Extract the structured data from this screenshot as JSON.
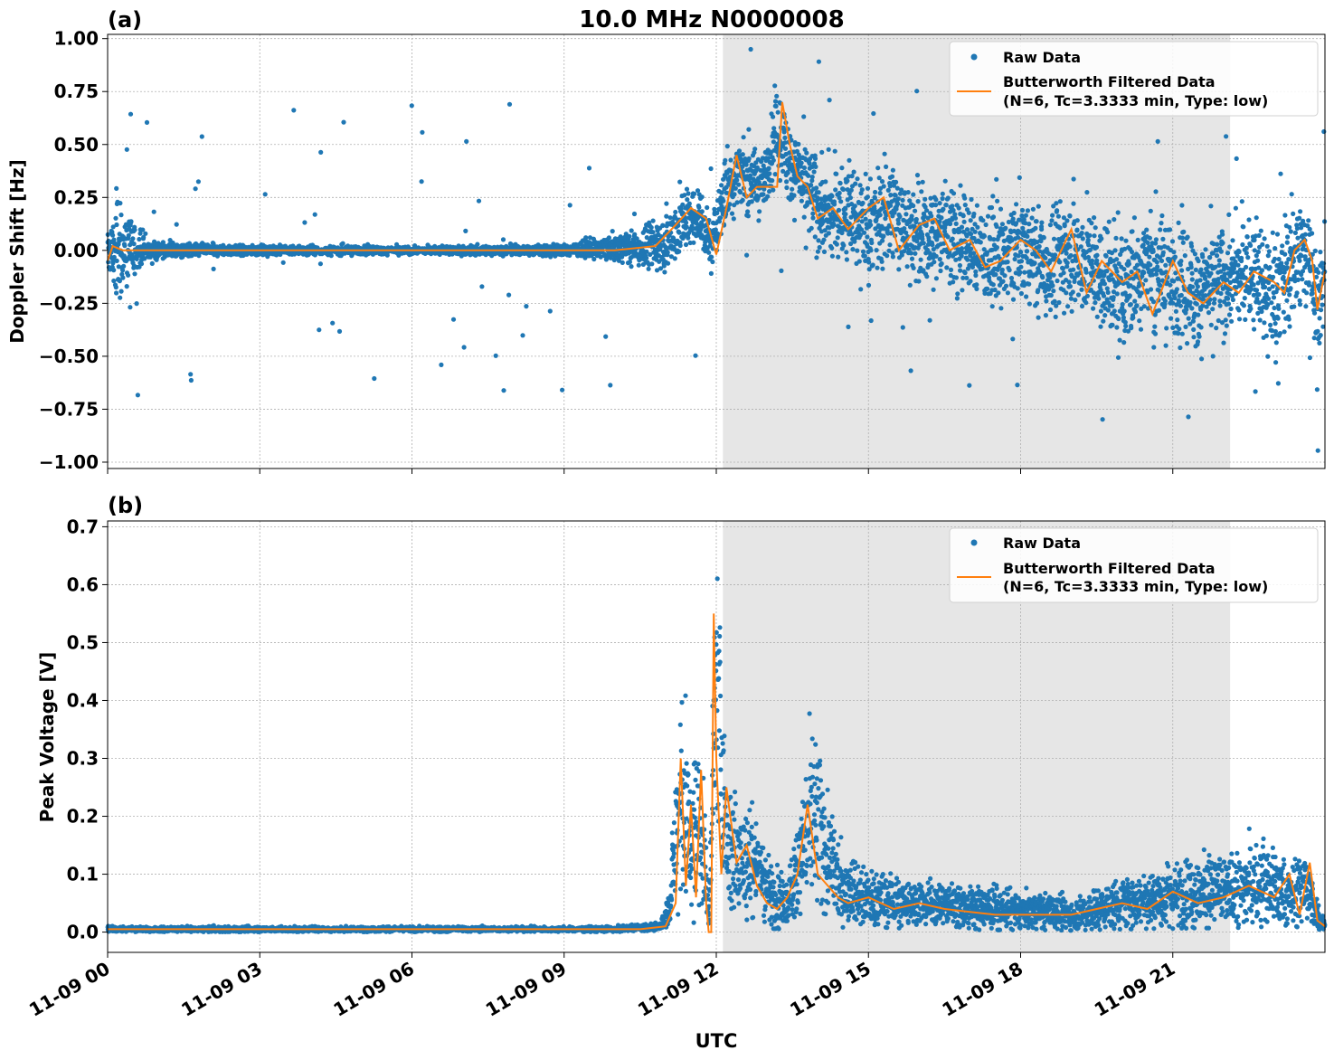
{
  "figure": {
    "title": "10.0 MHz N0000008",
    "xlabel": "UTC",
    "x_tick_labels": [
      "11-09 00",
      "11-09 03",
      "11-09 06",
      "11-09 09",
      "11-09 12",
      "11-09 15",
      "11-09 18",
      "11-09 21"
    ],
    "colors": {
      "raw": "#1f77b4",
      "filtered": "#ff7f0e",
      "shade": "#e6e6e6",
      "grid": "#b0b0b0"
    }
  },
  "chart_data": [
    {
      "type": "scatter",
      "panel_label": "(a)",
      "ylabel": "Doppler Shift [Hz]",
      "xlim_hours": [
        0,
        24
      ],
      "ylim": [
        -1.03,
        1.02
      ],
      "yticks": [
        -1.0,
        -0.75,
        -0.5,
        -0.25,
        0.0,
        0.25,
        0.5,
        0.75,
        1.0
      ],
      "ytick_labels": [
        "−1.00",
        "−0.75",
        "−0.50",
        "−0.25",
        "0.00",
        "0.25",
        "0.50",
        "0.75",
        "1.00"
      ],
      "shaded_span_hours": [
        12.13,
        22.13
      ],
      "grid": true,
      "legend": {
        "placement": "top-right",
        "raw": "Raw Data",
        "filtered_line1": "Butterworth Filtered Data",
        "filtered_line2": "(N=6, Tc=3.3333 min, Type: low)"
      },
      "series": [
        {
          "name": "Raw Data",
          "kind": "points",
          "x_hours_y_center_spread": [
            [
              0,
              0,
              0.08
            ],
            [
              0.2,
              0,
              0.3
            ],
            [
              0.4,
              0,
              0.2
            ],
            [
              0.8,
              0,
              0.05
            ],
            [
              2,
              0,
              0.03
            ],
            [
              6,
              0,
              0.02
            ],
            [
              9,
              0,
              0.03
            ],
            [
              9.8,
              0.01,
              0.06
            ],
            [
              10.5,
              0.01,
              0.1
            ],
            [
              11,
              0.04,
              0.15
            ],
            [
              11.3,
              0.12,
              0.18
            ],
            [
              11.6,
              0.18,
              0.15
            ],
            [
              11.9,
              0.02,
              0.12
            ],
            [
              12.2,
              0.3,
              0.2
            ],
            [
              12.5,
              0.38,
              0.2
            ],
            [
              12.9,
              0.3,
              0.15
            ],
            [
              13.2,
              0.55,
              0.22
            ],
            [
              13.5,
              0.4,
              0.22
            ],
            [
              13.8,
              0.28,
              0.25
            ],
            [
              14.2,
              0.15,
              0.25
            ],
            [
              14.6,
              0.18,
              0.25
            ],
            [
              15,
              0.12,
              0.25
            ],
            [
              15.5,
              0.18,
              0.25
            ],
            [
              16,
              0.05,
              0.25
            ],
            [
              16.5,
              0.1,
              0.25
            ],
            [
              17,
              0.02,
              0.25
            ],
            [
              17.5,
              -0.05,
              0.25
            ],
            [
              18,
              0.02,
              0.28
            ],
            [
              18.5,
              -0.08,
              0.28
            ],
            [
              19,
              0,
              0.3
            ],
            [
              19.5,
              -0.1,
              0.28
            ],
            [
              20,
              -0.2,
              0.3
            ],
            [
              20.5,
              -0.05,
              0.3
            ],
            [
              21,
              -0.15,
              0.3
            ],
            [
              21.5,
              -0.2,
              0.3
            ],
            [
              22,
              -0.15,
              0.28
            ],
            [
              22.5,
              -0.1,
              0.28
            ],
            [
              23,
              -0.2,
              0.3
            ],
            [
              23.4,
              -0.05,
              0.28
            ],
            [
              23.7,
              0,
              0.25
            ],
            [
              23.85,
              -0.3,
              0.35
            ],
            [
              24,
              -0.1,
              0.2
            ]
          ]
        },
        {
          "name": "Butterworth Filtered Data",
          "kind": "line",
          "x_hours": [
            0,
            0.1,
            0.3,
            1,
            3,
            6,
            9,
            10,
            10.8,
            11.2,
            11.5,
            11.8,
            12.0,
            12.2,
            12.4,
            12.6,
            12.8,
            13.0,
            13.2,
            13.3,
            13.45,
            13.6,
            13.8,
            14.0,
            14.3,
            14.6,
            15.0,
            15.3,
            15.6,
            16.0,
            16.3,
            16.6,
            17.0,
            17.3,
            17.6,
            18.0,
            18.3,
            18.6,
            19.0,
            19.3,
            19.6,
            20.0,
            20.3,
            20.6,
            21.0,
            21.3,
            21.6,
            22.0,
            22.3,
            22.6,
            23.0,
            23.2,
            23.4,
            23.6,
            23.75,
            23.85,
            24.0
          ],
          "y": [
            -0.05,
            0.02,
            0.0,
            0.0,
            0.0,
            0.0,
            0.0,
            0.0,
            0.02,
            0.12,
            0.2,
            0.15,
            -0.02,
            0.2,
            0.45,
            0.25,
            0.3,
            0.3,
            0.3,
            0.7,
            0.5,
            0.35,
            0.3,
            0.15,
            0.2,
            0.1,
            0.2,
            0.25,
            0.0,
            0.12,
            0.15,
            0.0,
            0.05,
            -0.08,
            -0.05,
            0.05,
            0.0,
            -0.1,
            0.1,
            -0.2,
            -0.05,
            -0.15,
            -0.1,
            -0.3,
            -0.05,
            -0.2,
            -0.25,
            -0.15,
            -0.2,
            -0.1,
            -0.15,
            -0.2,
            0.0,
            0.05,
            -0.05,
            -0.28,
            -0.1
          ]
        }
      ]
    },
    {
      "type": "scatter",
      "panel_label": "(b)",
      "ylabel": "Peak Voltage [V]",
      "xlim_hours": [
        0,
        24
      ],
      "ylim": [
        -0.035,
        0.71
      ],
      "yticks": [
        0.0,
        0.1,
        0.2,
        0.3,
        0.4,
        0.5,
        0.6,
        0.7
      ],
      "ytick_labels": [
        "0.0",
        "0.1",
        "0.2",
        "0.3",
        "0.4",
        "0.5",
        "0.6",
        "0.7"
      ],
      "shaded_span_hours": [
        12.13,
        22.13
      ],
      "grid": true,
      "legend": {
        "placement": "top-right",
        "raw": "Raw Data",
        "filtered_line1": "Butterworth Filtered Data",
        "filtered_line2": "(N=6, Tc=3.3333 min, Type: low)"
      },
      "series": [
        {
          "name": "Raw Data",
          "kind": "points",
          "x_hours_y_center_spread": [
            [
              0,
              0.005,
              0.005
            ],
            [
              5,
              0.005,
              0.005
            ],
            [
              10,
              0.005,
              0.005
            ],
            [
              10.9,
              0.01,
              0.008
            ],
            [
              11.1,
              0.05,
              0.05
            ],
            [
              11.3,
              0.25,
              0.25
            ],
            [
              11.5,
              0.15,
              0.15
            ],
            [
              11.7,
              0.2,
              0.2
            ],
            [
              11.85,
              0.02,
              0.02
            ],
            [
              12.0,
              0.45,
              0.25
            ],
            [
              12.2,
              0.15,
              0.12
            ],
            [
              12.5,
              0.12,
              0.12
            ],
            [
              12.8,
              0.12,
              0.1
            ],
            [
              13.1,
              0.06,
              0.06
            ],
            [
              13.4,
              0.05,
              0.05
            ],
            [
              13.6,
              0.12,
              0.1
            ],
            [
              13.9,
              0.2,
              0.18
            ],
            [
              14.2,
              0.12,
              0.1
            ],
            [
              14.5,
              0.08,
              0.08
            ],
            [
              15,
              0.06,
              0.05
            ],
            [
              15.5,
              0.05,
              0.05
            ],
            [
              16,
              0.05,
              0.04
            ],
            [
              16.5,
              0.05,
              0.04
            ],
            [
              17,
              0.04,
              0.04
            ],
            [
              17.5,
              0.04,
              0.04
            ],
            [
              18,
              0.035,
              0.035
            ],
            [
              18.5,
              0.035,
              0.035
            ],
            [
              19,
              0.03,
              0.03
            ],
            [
              19.5,
              0.04,
              0.04
            ],
            [
              20,
              0.05,
              0.05
            ],
            [
              20.5,
              0.06,
              0.06
            ],
            [
              21,
              0.06,
              0.06
            ],
            [
              21.5,
              0.07,
              0.07
            ],
            [
              22,
              0.07,
              0.07
            ],
            [
              22.5,
              0.08,
              0.08
            ],
            [
              23,
              0.08,
              0.08
            ],
            [
              23.3,
              0.06,
              0.06
            ],
            [
              23.6,
              0.08,
              0.08
            ],
            [
              23.8,
              0.04,
              0.04
            ],
            [
              24,
              0.01,
              0.005
            ]
          ]
        },
        {
          "name": "Butterworth Filtered Data",
          "kind": "line",
          "x_hours": [
            0,
            10.5,
            11.0,
            11.2,
            11.3,
            11.4,
            11.5,
            11.6,
            11.7,
            11.8,
            11.85,
            11.9,
            11.95,
            12.0,
            12.1,
            12.2,
            12.4,
            12.6,
            12.8,
            13.0,
            13.2,
            13.4,
            13.6,
            13.8,
            14.0,
            14.2,
            14.4,
            14.6,
            15.0,
            15.5,
            16.0,
            16.5,
            17.0,
            17.5,
            18.0,
            18.5,
            19.0,
            19.5,
            20.0,
            20.5,
            21.0,
            21.5,
            22.0,
            22.5,
            23.0,
            23.3,
            23.5,
            23.7,
            23.85,
            24.0
          ],
          "y": [
            0.005,
            0.005,
            0.01,
            0.05,
            0.3,
            0.08,
            0.22,
            0.06,
            0.28,
            0.05,
            0.0,
            0.0,
            0.55,
            0.3,
            0.1,
            0.25,
            0.12,
            0.15,
            0.08,
            0.05,
            0.04,
            0.06,
            0.1,
            0.22,
            0.1,
            0.08,
            0.06,
            0.05,
            0.06,
            0.04,
            0.05,
            0.04,
            0.035,
            0.03,
            0.03,
            0.03,
            0.03,
            0.04,
            0.05,
            0.04,
            0.07,
            0.05,
            0.06,
            0.08,
            0.06,
            0.1,
            0.03,
            0.12,
            0.02,
            0.01
          ]
        }
      ]
    }
  ]
}
